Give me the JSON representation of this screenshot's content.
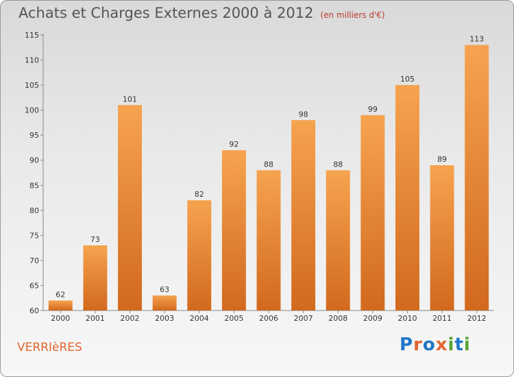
{
  "header": {
    "title": "Achats et Charges Externes 2000 à 2012",
    "unit": "(en milliers d'€)"
  },
  "footer": {
    "commune": "VERRIèRES",
    "brand": [
      "P",
      "r",
      "o",
      "x",
      "i",
      "t",
      "i"
    ],
    "brand_colors": [
      "#1f77c9",
      "#e0662f",
      "#1f77c9",
      "#e0662f",
      "#55a630",
      "#1f77c9",
      "#55a630"
    ]
  },
  "colors": {
    "bar_top": "#f6a34f",
    "bar_bottom": "#d2691e",
    "axis": "#888888",
    "grid": "#ffffff"
  },
  "chart_data": {
    "type": "bar",
    "categories": [
      "2000",
      "2001",
      "2002",
      "2003",
      "2004",
      "2005",
      "2006",
      "2007",
      "2008",
      "2009",
      "2010",
      "2011",
      "2012"
    ],
    "values": [
      62,
      73,
      101,
      63,
      82,
      92,
      88,
      98,
      88,
      99,
      105,
      89,
      113
    ],
    "ylim": [
      60,
      115
    ],
    "yticks": [
      60,
      65,
      70,
      75,
      80,
      85,
      90,
      95,
      100,
      105,
      110,
      115
    ],
    "grid": false,
    "data_labels": true
  }
}
